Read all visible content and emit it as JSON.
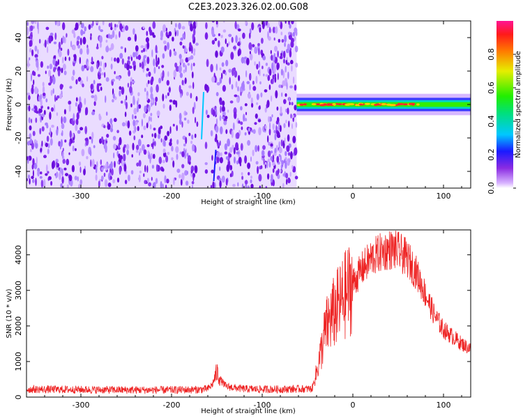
{
  "chart_data": [
    {
      "type": "heatmap",
      "title": "C2E3.2023.326.02.00.G08",
      "xlabel": "Height of straight line (km)",
      "ylabel": "Frequency (Hz)",
      "xlim": [
        -360,
        130
      ],
      "ylim": [
        -50,
        50
      ],
      "x_ticks": [
        -300,
        -200,
        -100,
        0,
        100
      ],
      "x_tick_labels": [
        "-300",
        "-200",
        "-100",
        "0",
        "100"
      ],
      "y_ticks": [
        -40,
        -20,
        0,
        20,
        40
      ],
      "y_tick_labels": [
        "-40",
        "-20",
        "0",
        "20",
        "40"
      ],
      "noise_region_x": [
        -360,
        -62
      ],
      "noise_gaps_x": [
        -170,
        -155
      ],
      "signal_region_x": [
        -62,
        130
      ],
      "signal_center_freq_hz": 0,
      "signal_halfwidth_hz": 4,
      "colorbar": {
        "label": "Normalized spectral amplitude",
        "range": [
          0.0,
          1.0
        ],
        "ticks": [
          0.0,
          0.2,
          0.4,
          0.6,
          0.8
        ],
        "tick_labels": [
          "0.0",
          "0.2",
          "0.4",
          "0.6",
          "0.8"
        ]
      }
    },
    {
      "type": "line",
      "xlabel": "Height of straight line (km)",
      "ylabel": "SNR (10 * v/v)",
      "xlim": [
        -360,
        130
      ],
      "ylim": [
        0,
        4700
      ],
      "x_ticks": [
        -300,
        -200,
        -100,
        0,
        100
      ],
      "x_tick_labels": [
        "-300",
        "-200",
        "-100",
        "0",
        "100"
      ],
      "y_ticks": [
        0,
        1000,
        2000,
        3000,
        4000
      ],
      "y_tick_labels": [
        "0",
        "1000",
        "2000",
        "3000",
        "4000"
      ],
      "series": [
        {
          "name": "SNR",
          "color": "#ee2222",
          "x": [
            -360,
            -300,
            -250,
            -200,
            -170,
            -160,
            -155,
            -150,
            -145,
            -140,
            -130,
            -120,
            -100,
            -80,
            -60,
            -45,
            -40,
            -35,
            -30,
            -25,
            -20,
            -15,
            -10,
            -5,
            0,
            10,
            20,
            30,
            40,
            50,
            60,
            70,
            80,
            90,
            100,
            110,
            120,
            130
          ],
          "values": [
            220,
            210,
            200,
            200,
            210,
            230,
            350,
            700,
            450,
            300,
            260,
            230,
            220,
            220,
            230,
            230,
            700,
            1300,
            1900,
            2200,
            2400,
            2600,
            2800,
            3000,
            3200,
            3600,
            3900,
            4050,
            4150,
            4100,
            3900,
            3500,
            2900,
            2300,
            1900,
            1700,
            1500,
            1350
          ]
        }
      ]
    }
  ]
}
